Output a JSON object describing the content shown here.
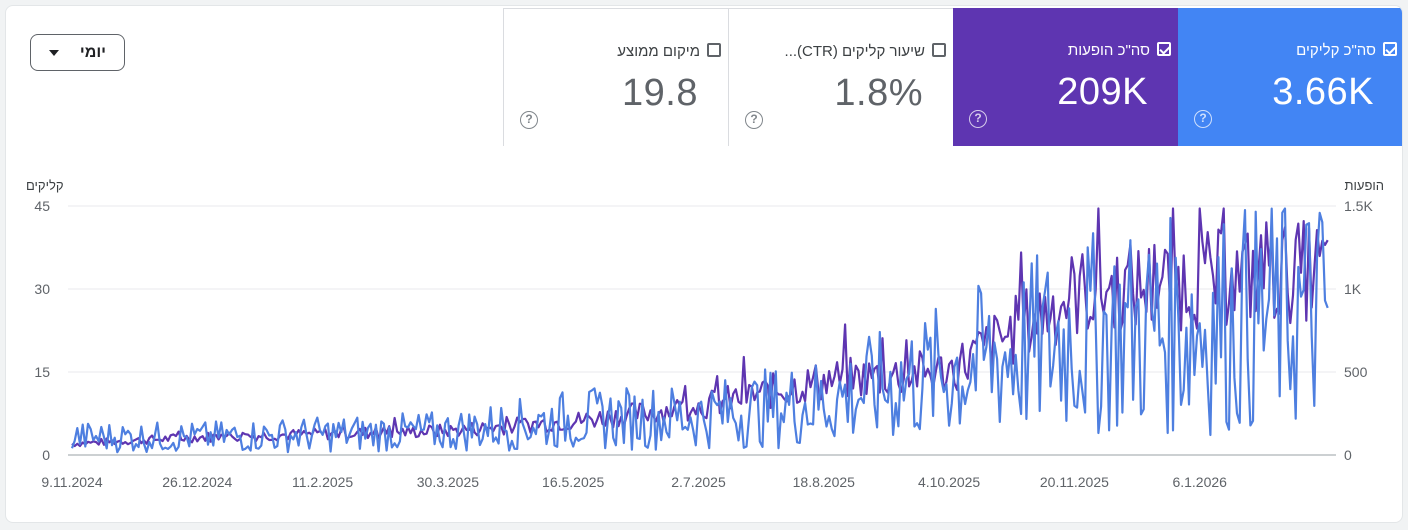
{
  "dropdown": {
    "label": "יומי"
  },
  "metrics": {
    "clicks": {
      "label": "סה\"כ קליקים",
      "value": "3.66K",
      "checked": true,
      "color": "#4285f4"
    },
    "impressions": {
      "label": "סה\"כ הופעות",
      "value": "209K",
      "checked": true,
      "color": "#5e35b1"
    },
    "ctr": {
      "label": "שיעור קליקים (CTR)...",
      "value": "1.8%",
      "checked": false
    },
    "position": {
      "label": "מיקום ממוצע",
      "value": "19.8",
      "checked": false
    }
  },
  "chart_data": {
    "type": "line",
    "y_left": {
      "label": "קליקים",
      "ticks": [
        "45",
        "30",
        "15",
        "0"
      ],
      "ylim": [
        0,
        45
      ]
    },
    "y_right": {
      "label": "הופעות",
      "ticks": [
        "1.5K",
        "1K",
        "500",
        "0"
      ],
      "ylim": [
        0,
        1500
      ]
    },
    "x_ticks": [
      "9.11.2024",
      "26.12.2024",
      "11.2.2025",
      "30.3.2025",
      "16.5.2025",
      "2.7.2025",
      "18.8.2025",
      "4.10.2025",
      "20.11.2025",
      "6.1.2026"
    ],
    "grid": true,
    "series": [
      {
        "name": "סה\"כ קליקים",
        "axis": "left",
        "color": "#4e7fe0",
        "x": [
          "9.11.2024",
          "26.12.2024",
          "11.2.2025",
          "30.3.2025",
          "16.5.2025",
          "2.7.2025",
          "18.8.2025",
          "4.10.2025",
          "20.11.2025",
          "6.1.2026",
          "23.2.2026"
        ],
        "values": [
          3,
          3,
          3.5,
          4,
          6,
          6.5,
          9,
          14,
          20,
          22,
          24
        ]
      },
      {
        "name": "סה\"כ הופעות",
        "axis": "right",
        "color": "#5e35b1",
        "x": [
          "9.11.2024",
          "26.12.2024",
          "11.2.2025",
          "30.3.2025",
          "16.5.2025",
          "2.7.2025",
          "18.8.2025",
          "4.10.2025",
          "20.11.2025",
          "6.1.2026",
          "23.2.2026"
        ],
        "values": [
          70,
          110,
          130,
          150,
          210,
          300,
          460,
          520,
          1000,
          1080,
          1150
        ]
      }
    ]
  }
}
